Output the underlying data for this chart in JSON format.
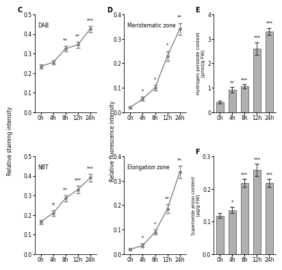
{
  "timepoints": [
    "0h",
    "4h",
    "8h",
    "12h",
    "24h"
  ],
  "panel_labels": [
    "C",
    "D",
    "E",
    "F"
  ],
  "dab_values": [
    0.235,
    0.255,
    0.325,
    0.345,
    0.425
  ],
  "dab_err": [
    0.01,
    0.01,
    0.015,
    0.015,
    0.015
  ],
  "dab_sig": [
    "",
    "",
    "**",
    "**",
    "***"
  ],
  "nbt_values": [
    0.165,
    0.21,
    0.285,
    0.33,
    0.39
  ],
  "nbt_err": [
    0.01,
    0.015,
    0.015,
    0.018,
    0.02
  ],
  "nbt_sig": [
    "",
    "+",
    "**",
    "***",
    "***"
  ],
  "meri_values": [
    0.02,
    0.055,
    0.1,
    0.23,
    0.34
  ],
  "meri_err": [
    0.005,
    0.008,
    0.012,
    0.02,
    0.025
  ],
  "meri_sig": [
    "",
    "*",
    "*",
    "*",
    "**"
  ],
  "elon_values": [
    0.02,
    0.035,
    0.09,
    0.185,
    0.335
  ],
  "elon_err": [
    0.005,
    0.008,
    0.01,
    0.018,
    0.025
  ],
  "elon_sig": [
    "",
    "*",
    "*",
    "**",
    "**"
  ],
  "h2o2_values": [
    0.42,
    0.92,
    1.05,
    2.6,
    3.3
  ],
  "h2o2_err": [
    0.05,
    0.1,
    0.08,
    0.25,
    0.15
  ],
  "h2o2_sig": [
    "",
    "**",
    "***",
    "***",
    "***"
  ],
  "soa_values": [
    0.118,
    0.135,
    0.218,
    0.258,
    0.218
  ],
  "soa_err": [
    0.008,
    0.01,
    0.012,
    0.018,
    0.012
  ],
  "soa_sig": [
    "",
    "*",
    "***",
    "***",
    "***"
  ],
  "line_color": "#808080",
  "bar_color": "#b0b0b0",
  "bar_edge": "#606060",
  "sig_color": "#000000",
  "background": "#ffffff"
}
